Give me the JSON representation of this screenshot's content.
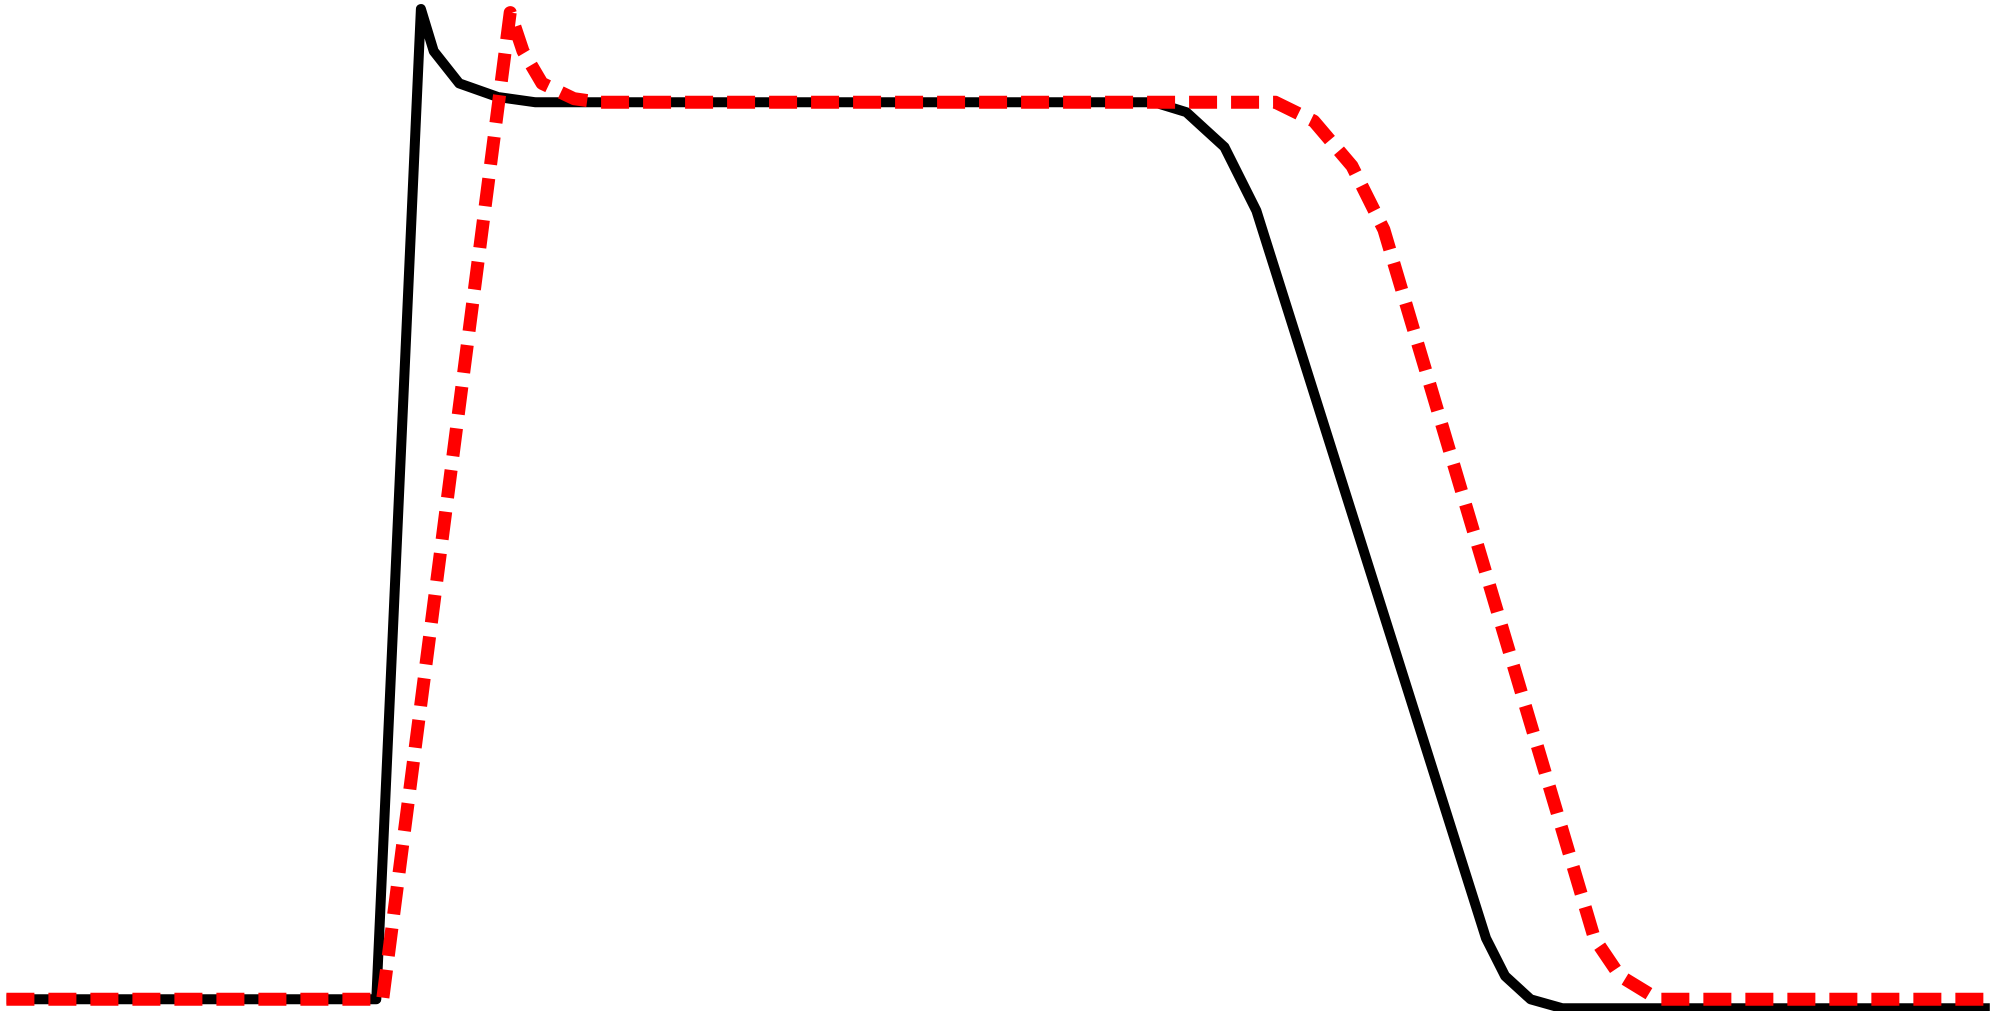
{
  "chart_data": {
    "type": "line",
    "xlim": [
      0,
      1568
    ],
    "ylim": [
      -1.3,
      111.4
    ],
    "series": [
      {
        "color": "#000000",
        "dashed": false,
        "x": [
          5,
          295,
          330,
          340,
          360,
          390,
          420,
          905,
          930,
          960,
          985,
          1165,
          1180,
          1200,
          1225,
          1560
        ],
        "values": [
          0,
          0,
          110.4,
          105.7,
          102.1,
          100.6,
          100,
          100,
          98.9,
          95.0,
          87.9,
          6.8,
          2.6,
          0,
          -1.0,
          -1.0
        ]
      },
      {
        "color": "#ff0000",
        "dashed": true,
        "x": [
          5,
          300,
          400,
          410,
          425,
          450,
          470,
          1000,
          1030,
          1060,
          1085,
          1250,
          1270,
          1300,
          1560
        ],
        "values": [
          0,
          0,
          110,
          105.7,
          102.1,
          100.4,
          100,
          100,
          97.9,
          92.9,
          85.8,
          6.8,
          2.6,
          0,
          0
        ]
      }
    ]
  }
}
